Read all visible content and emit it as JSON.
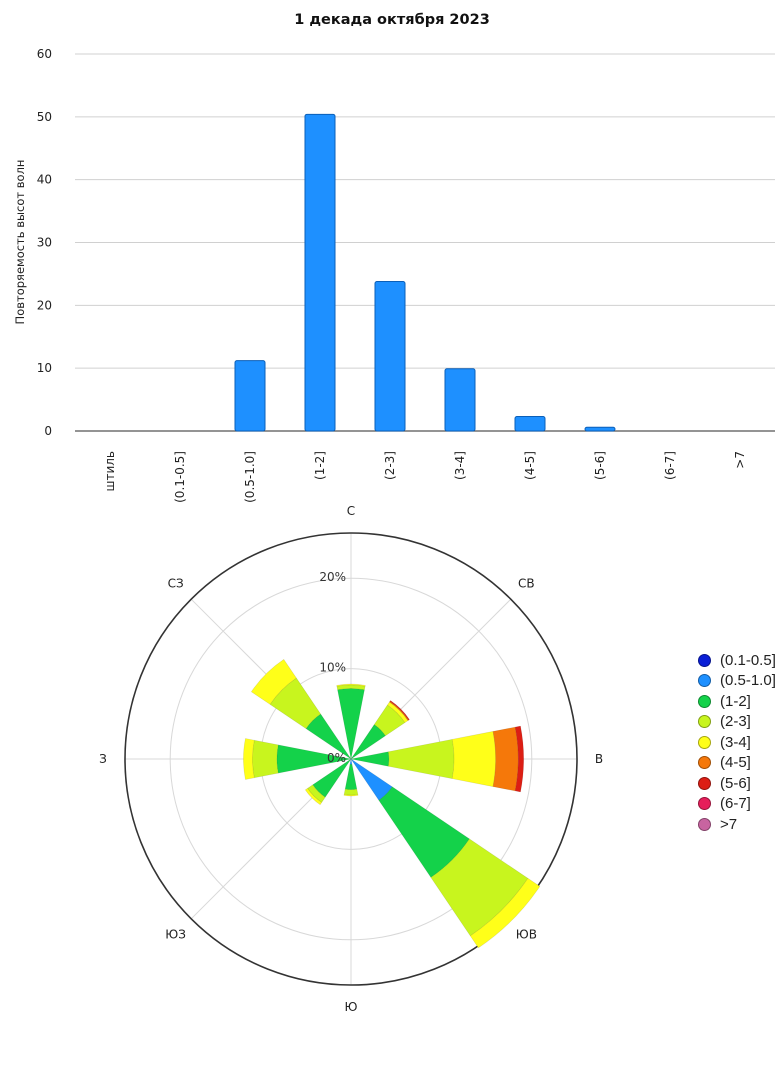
{
  "chart_data": [
    {
      "type": "bar",
      "title": "1 декада октября 2023",
      "xlabel": "",
      "ylabel": "Повторяемость высот волн",
      "categories": [
        "штиль",
        "(0.1-0.5]",
        "(0.5-1.0]",
        "(1-2]",
        "(2-3]",
        "(3-4]",
        "(4-5]",
        "(5-6]",
        "(6-7]",
        ">7"
      ],
      "values": [
        0,
        0,
        11.2,
        50.4,
        23.8,
        9.9,
        2.3,
        0.6,
        0,
        0
      ],
      "ylim": [
        0,
        60
      ],
      "yticks": [
        0,
        10,
        20,
        30,
        40,
        50,
        60
      ],
      "bar_color": "#1e90ff",
      "grid": true
    },
    {
      "type": "wind-rose",
      "directions": [
        "С",
        "СВ",
        "В",
        "ЮВ",
        "Ю",
        "ЮЗ",
        "З",
        "СЗ"
      ],
      "radial_ticks": [
        "0%",
        "10%",
        "20%"
      ],
      "rmax": 25,
      "legend_placement": "right",
      "series": [
        {
          "name": "(0.1-0.5]",
          "color": "#0a1fd6",
          "values": [
            0,
            0,
            0,
            0,
            0,
            0,
            0,
            0
          ]
        },
        {
          "name": "(0.5-1.0]",
          "color": "#1e90ff",
          "values": [
            0,
            0,
            0,
            5.5,
            0.6,
            0,
            0,
            0
          ]
        },
        {
          "name": "(1-2]",
          "color": "#14d24a",
          "values": [
            7.8,
            4.6,
            4.2,
            10.3,
            2.8,
            5.1,
            8.2,
            6.0
          ]
        },
        {
          "name": "(2-3]",
          "color": "#c8f51e",
          "values": [
            0.4,
            2.6,
            7.2,
            7.8,
            0.6,
            0.7,
            2.7,
            4.8
          ]
        },
        {
          "name": "(3-4]",
          "color": "#ffff19",
          "values": [
            0.1,
            0.4,
            4.6,
            1.6,
            0.1,
            0.3,
            1.0,
            2.5
          ]
        },
        {
          "name": "(4-5]",
          "color": "#f5780a",
          "values": [
            0,
            0.1,
            2.5,
            0,
            0,
            0,
            0,
            0
          ]
        },
        {
          "name": "(5-6]",
          "color": "#dc1e14",
          "values": [
            0,
            0.1,
            0.6,
            0,
            0,
            0,
            0,
            0
          ]
        },
        {
          "name": "(6-7]",
          "color": "#e61e5a",
          "values": [
            0,
            0,
            0,
            0,
            0,
            0,
            0,
            0
          ]
        },
        {
          "name": ">7",
          "color": "#c864a0",
          "values": [
            0,
            0,
            0,
            0,
            0,
            0,
            0,
            0
          ]
        }
      ]
    }
  ]
}
